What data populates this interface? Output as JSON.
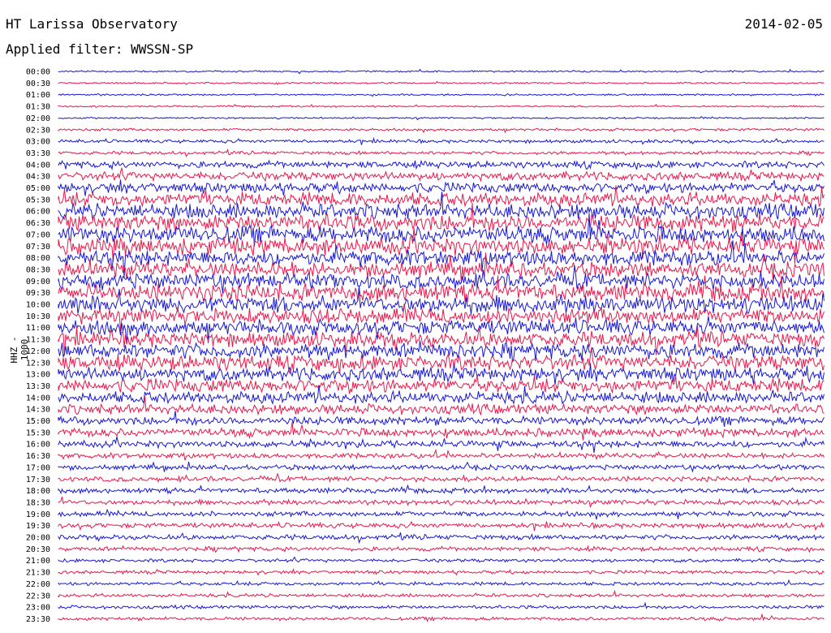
{
  "header": {
    "station": "HT Larissa Observatory",
    "date": "2014-02-05",
    "filter": "Applied filter: WWSSN-SP"
  },
  "chart_data": {
    "type": "line",
    "title": "HT Larissa Observatory",
    "subtitle": "Applied filter: WWSSN-SP",
    "ylabel": "HHZ - 1000",
    "row_labels": [
      "00:00",
      "00:30",
      "01:00",
      "01:30",
      "02:00",
      "02:30",
      "03:00",
      "03:30",
      "04:00",
      "04:30",
      "05:00",
      "05:30",
      "06:00",
      "06:30",
      "07:00",
      "07:30",
      "08:00",
      "08:30",
      "09:00",
      "09:30",
      "10:00",
      "10:30",
      "11:00",
      "11:30",
      "12:00",
      "12:30",
      "13:00",
      "13:30",
      "14:00",
      "14:30",
      "15:00",
      "15:30",
      "16:00",
      "16:30",
      "17:00",
      "17:30",
      "18:00",
      "18:30",
      "19:00",
      "19:30",
      "20:00",
      "20:30",
      "21:00",
      "21:30",
      "22:00",
      "22:30",
      "23:00",
      "23:30"
    ],
    "series_colors": [
      "#1818d0",
      "#e8184c"
    ],
    "noise_level": [
      1,
      1,
      1,
      1,
      1,
      1.5,
      2,
      2,
      4,
      5,
      6,
      8,
      9,
      10,
      10,
      10,
      9,
      9,
      9,
      10,
      10,
      9,
      9,
      9,
      9,
      9,
      8,
      8,
      7,
      6,
      5,
      5,
      4,
      3,
      3,
      3,
      3,
      3,
      3,
      3,
      3,
      2.5,
      2,
      2,
      2,
      2,
      2,
      2
    ]
  }
}
